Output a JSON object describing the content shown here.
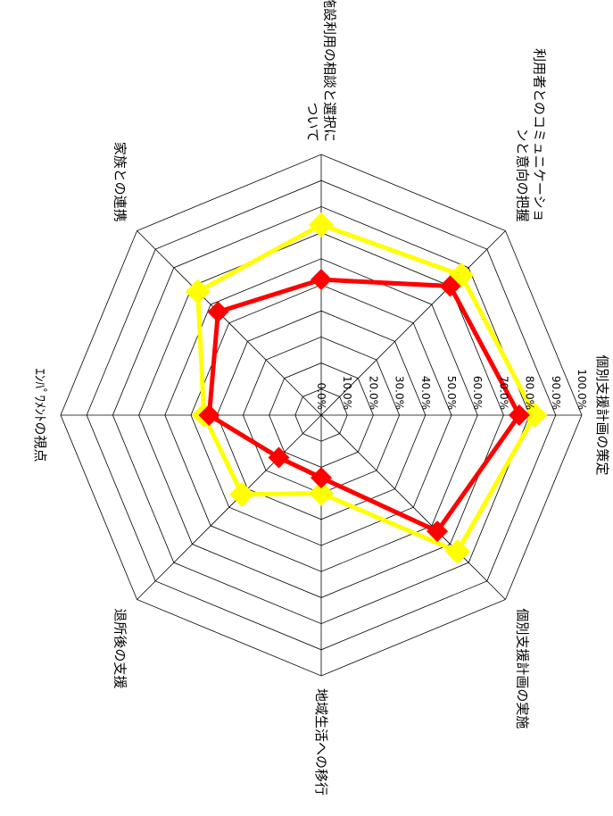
{
  "chart_data": {
    "type": "radar",
    "axes": [
      "個別支援計画の策定",
      "個別支援計画の実施",
      "地域生活への移行",
      "退所後の支援",
      "エンパワメントの視点",
      "家族との連携",
      "施設利用の相談と選択について",
      "利用者とのコミュニケーションと意向の把握"
    ],
    "axis_label_lines": [
      [
        "個別支援計画の策定"
      ],
      [
        "個別支援計画の実施"
      ],
      [
        "地域生活への移行"
      ],
      [
        "退所後の支援"
      ],
      [
        "ｴﾝﾊﾟﾜﾒﾝﾄの視点"
      ],
      [
        "家族との連携"
      ],
      [
        "施設利用の相談と選択に",
        "ついて"
      ],
      [
        "利用者とのコミュニケーショ",
        "ンと意向の把握"
      ]
    ],
    "tick_labels": [
      "0.0%",
      "10.0%",
      "20.0%",
      "30.0%",
      "40.0%",
      "50.0%",
      "60.0%",
      "70.0%",
      "80.0%",
      "90.0%",
      "100.0%"
    ],
    "rmin": 0,
    "rmax": 100,
    "grid_rings": 10,
    "series": [
      {
        "color": "#FFFF00",
        "values": [
          82,
          74,
          30,
          43,
          45,
          67,
          73,
          76
        ]
      },
      {
        "color": "#FF0000",
        "values": [
          76,
          63,
          24,
          23,
          43,
          56,
          52,
          70
        ]
      }
    ],
    "orientation": "rotated 90° clockwise"
  }
}
